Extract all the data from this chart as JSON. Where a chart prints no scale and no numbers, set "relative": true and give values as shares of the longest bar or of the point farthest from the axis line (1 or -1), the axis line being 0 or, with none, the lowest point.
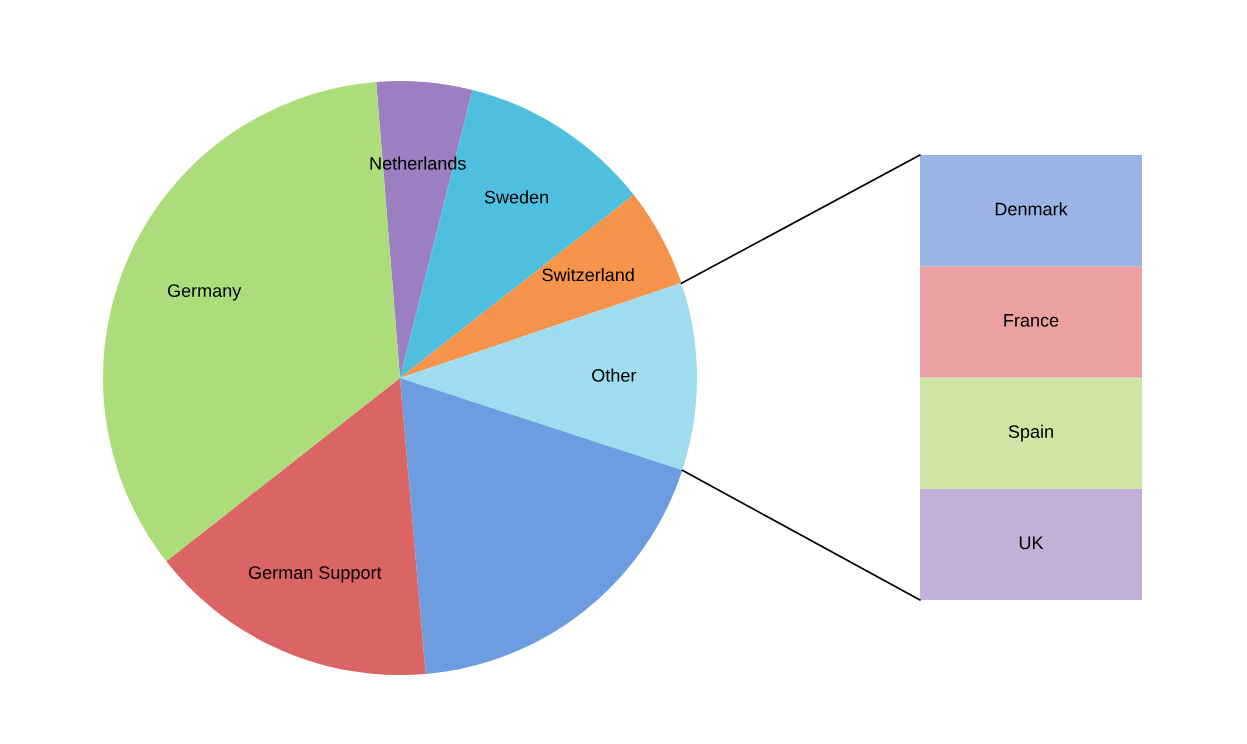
{
  "chart_data": [
    {
      "type": "pie",
      "categories": [
        "Netherlands",
        "Sweden",
        "Switzerland",
        "Other",
        null,
        "German Support",
        "Germany"
      ],
      "values": [
        5.2,
        10.5,
        5.4,
        10.2,
        18.6,
        15.8,
        34.3
      ],
      "colors": [
        "#9b7fc0",
        "#4fbfdf",
        "#f5944a",
        "#9fdcef",
        "#6d9ce0",
        "#db6464",
        "#addd7a"
      ]
    },
    {
      "type": "bar",
      "stacked": true,
      "relative": true,
      "categories": [
        null
      ],
      "series": [
        {
          "name": "UK",
          "color": "#c3b0d8",
          "values": [
            0.25
          ]
        },
        {
          "name": "Spain",
          "color": "#cfe5a6",
          "values": [
            0.25
          ]
        },
        {
          "name": "France",
          "color": "#eda0a0",
          "values": [
            0.25
          ]
        },
        {
          "name": "Denmark",
          "color": "#9ab4e4",
          "values": [
            0.25
          ]
        }
      ]
    }
  ]
}
